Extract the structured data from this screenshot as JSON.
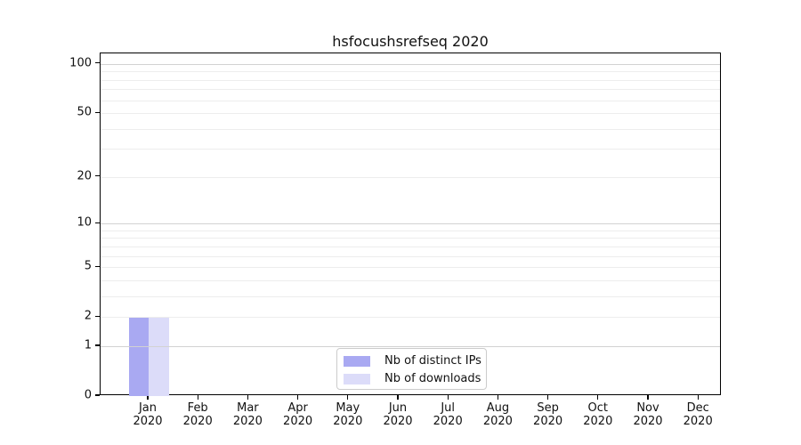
{
  "chart_data": {
    "type": "bar",
    "title": "hsfocushsrefseq 2020",
    "categories": [
      "Jan 2020",
      "Feb 2020",
      "Mar 2020",
      "Apr 2020",
      "May 2020",
      "Jun 2020",
      "Jul 2020",
      "Aug 2020",
      "Sep 2020",
      "Oct 2020",
      "Nov 2020",
      "Dec 2020"
    ],
    "series": [
      {
        "name": "Nb of distinct IPs",
        "color": "#a9a9f2",
        "values": [
          2,
          0,
          0,
          0,
          0,
          0,
          0,
          0,
          0,
          0,
          0,
          0
        ]
      },
      {
        "name": "Nb of downloads",
        "color": "#dcdcf9",
        "values": [
          2,
          0,
          0,
          0,
          0,
          0,
          0,
          0,
          0,
          0,
          0,
          0
        ]
      }
    ],
    "xlabel": "",
    "ylabel": "",
    "yscale": "log1p",
    "ylim": [
      0,
      116
    ],
    "yticks": [
      0,
      1,
      2,
      5,
      10,
      20,
      50,
      100
    ],
    "minor_gridlines": [
      2,
      3,
      4,
      5,
      6,
      7,
      8,
      9,
      20,
      30,
      40,
      50,
      60,
      70,
      80,
      90
    ],
    "major_gridlines": [
      1,
      10,
      100
    ],
    "grid": "horizontal",
    "legend_position": "lower center",
    "colors": {
      "minor_grid": "#ededed",
      "major_grid": "#d2d2d2",
      "axis": "#000000",
      "text": "#111111",
      "legend_border": "#cccccc",
      "background": "#ffffff"
    }
  }
}
